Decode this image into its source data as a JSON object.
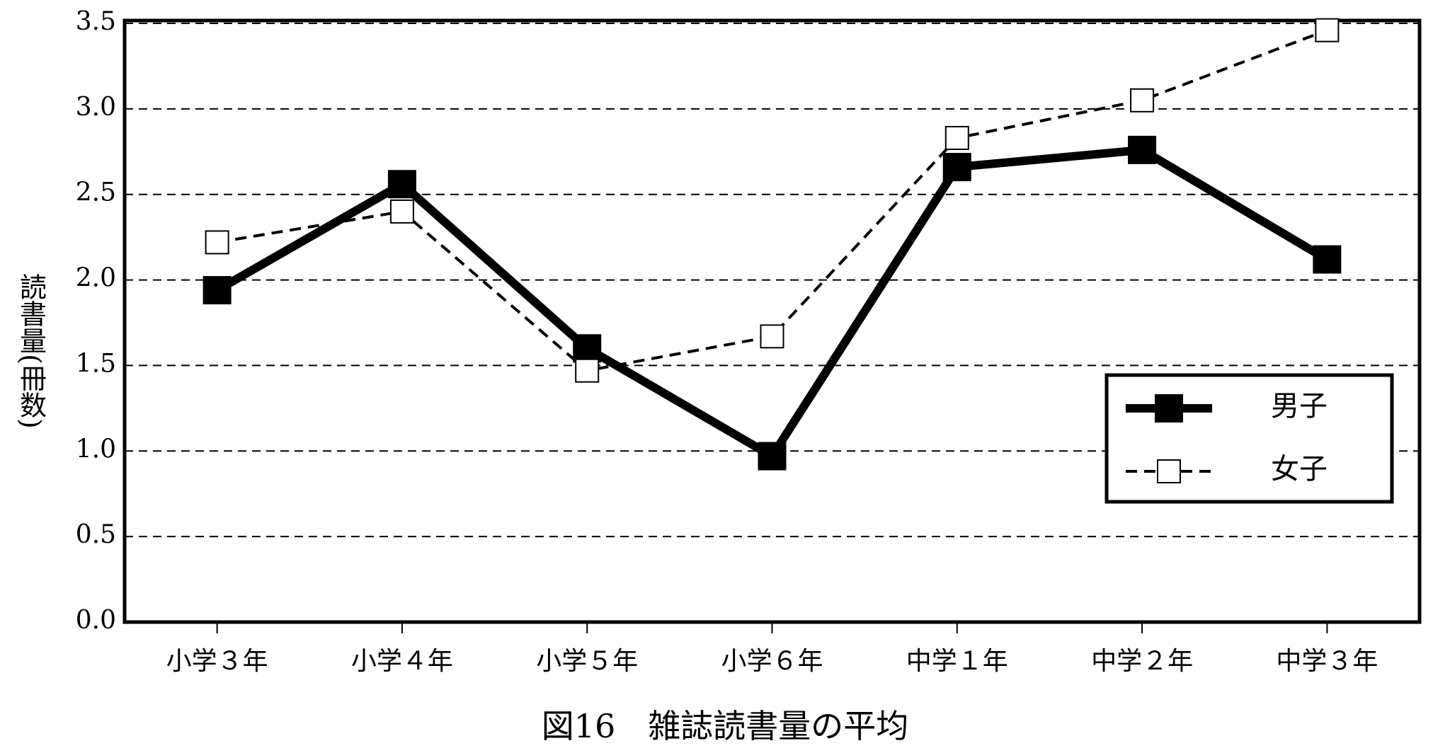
{
  "chart_data": {
    "type": "line",
    "title": "図16　雑誌読書量の平均",
    "y_label": "読書量(冊数)",
    "categories": [
      "小学３年",
      "小学４年",
      "小学５年",
      "小学６年",
      "中学１年",
      "中学２年",
      "中学３年"
    ],
    "series": [
      {
        "name": "男子",
        "color": "#000000",
        "values": [
          1.94,
          2.56,
          1.6,
          0.97,
          2.66,
          2.76,
          2.12
        ]
      },
      {
        "name": "女子",
        "color": "#000000",
        "values": [
          2.22,
          2.4,
          1.47,
          1.67,
          2.83,
          3.05,
          3.46
        ]
      }
    ],
    "ylim": [
      0,
      3.5
    ],
    "yticks": [
      {
        "value": 0,
        "label": "0.0"
      },
      0.5,
      {
        "value": 1,
        "label": "1.0"
      },
      1.5,
      {
        "value": 2,
        "label": "2.0"
      },
      2.5,
      {
        "value": 3,
        "label": "3.0"
      },
      3.5
    ],
    "grid": true
  }
}
